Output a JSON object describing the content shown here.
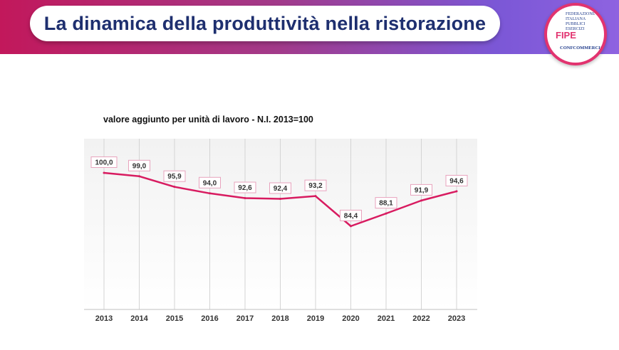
{
  "slide": {
    "title": "La dinamica della produttività nella ristorazione",
    "logo": {
      "lines": [
        "FEDERAZIONE",
        "ITALIANA",
        "PUBBLICI",
        "ESERCIZI"
      ],
      "brand": "FIPE",
      "footer": "CONFCOMMERCIO"
    },
    "colors": {
      "banner_left": "#c2185b",
      "banner_right": "#8e63e0",
      "title_text": "#1e2f6f",
      "line": "#d81b60"
    }
  },
  "chart_data": {
    "type": "line",
    "title": "valore aggiunto per unità di lavoro - N.I. 2013=100",
    "xlabel": "",
    "ylabel": "",
    "categories": [
      "2013",
      "2014",
      "2015",
      "2016",
      "2017",
      "2018",
      "2019",
      "2020",
      "2021",
      "2022",
      "2023"
    ],
    "series": [
      {
        "name": "valore aggiunto per unità di lavoro",
        "values": [
          100.0,
          99.0,
          95.9,
          94.0,
          92.6,
          92.4,
          93.2,
          84.4,
          88.1,
          91.9,
          94.6
        ],
        "labels": [
          "100,0",
          "99,0",
          "95,9",
          "94,0",
          "92,6",
          "92,4",
          "93,2",
          "84,4",
          "88,1",
          "91,9",
          "94,6"
        ],
        "color": "#d81b60"
      }
    ],
    "ylim": [
      60,
      110
    ],
    "grid": "vertical",
    "legend": "none"
  }
}
